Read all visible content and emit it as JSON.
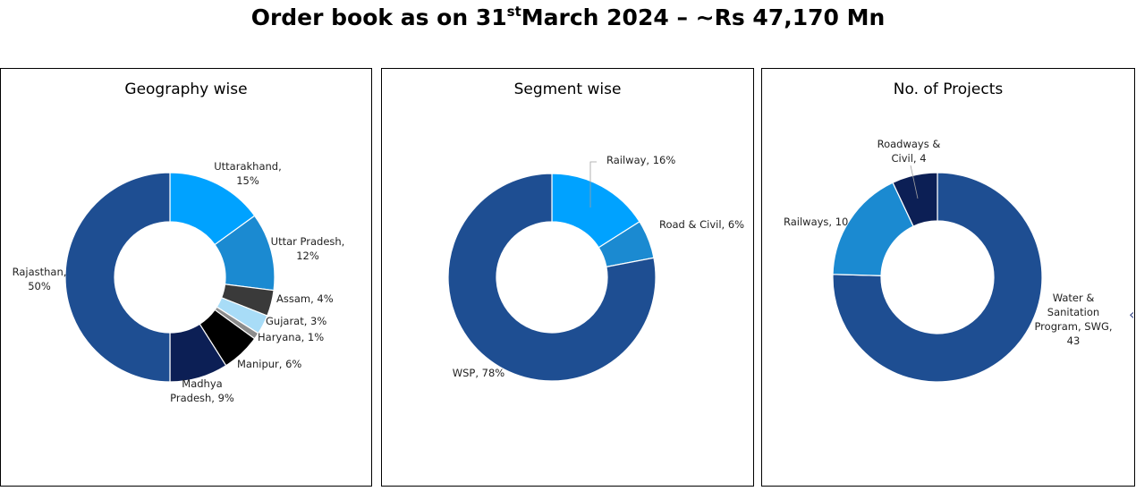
{
  "title": {
    "main": "Order book as on 31",
    "sup": "st",
    "rest": "March 2024 – ~Rs 47,170 Mn"
  },
  "chart_data": [
    {
      "type": "pie",
      "title": "Geography wise",
      "slices": [
        {
          "label": [
            "Uttarakhand,",
            "15%"
          ],
          "value": 15,
          "color": "#00a2ff"
        },
        {
          "label": [
            "Uttar Pradesh,",
            "12%"
          ],
          "value": 12,
          "color": "#1b8ad1"
        },
        {
          "label": [
            "Assam, 4%"
          ],
          "value": 4,
          "color": "#3a3a3a"
        },
        {
          "label": [
            "Gujarat, 3%"
          ],
          "value": 3,
          "color": "#a8dcf7"
        },
        {
          "label": [
            "Haryana, 1%"
          ],
          "value": 1,
          "color": "#8c8c8c"
        },
        {
          "label": [
            "Manipur, 6%"
          ],
          "value": 6,
          "color": "#000000"
        },
        {
          "label": [
            "Madhya",
            "Pradesh, 9%"
          ],
          "value": 9,
          "color": "#0c1f55"
        },
        {
          "label": [
            "Rajasthan,",
            "50%"
          ],
          "value": 50,
          "color": "#1e4e92"
        }
      ]
    },
    {
      "type": "pie",
      "title": "Segment wise",
      "slices": [
        {
          "label": [
            "Railway, 16%"
          ],
          "value": 16,
          "color": "#00a2ff"
        },
        {
          "label": [
            "Road & Civil, 6%"
          ],
          "value": 6,
          "color": "#1b8ad1"
        },
        {
          "label": [
            "WSP, 78%"
          ],
          "value": 78,
          "color": "#1e4e92"
        }
      ]
    },
    {
      "type": "pie",
      "title": "No. of Projects",
      "slices": [
        {
          "label": [
            "Water &",
            "Sanitation",
            "Program, SWG,",
            "43"
          ],
          "value": 43,
          "color": "#1e4e92"
        },
        {
          "label": [
            "Railways,  10"
          ],
          "value": 10,
          "color": "#1b8ad1"
        },
        {
          "label": [
            "Roadways &",
            "Civil,  4"
          ],
          "value": 4,
          "color": "#0c1f55"
        }
      ]
    }
  ]
}
